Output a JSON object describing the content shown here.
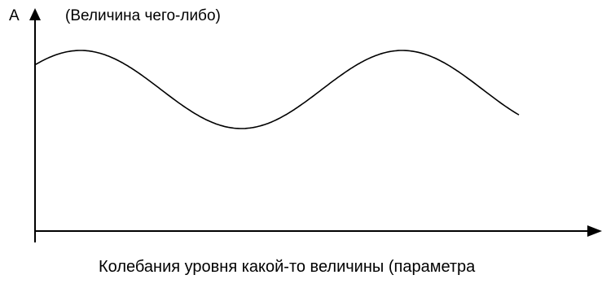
{
  "diagram": {
    "y_axis_name": "A",
    "y_axis_description": "(Величина чего-либо)",
    "caption": "Колебания уровня какой-то величины (параметра"
  }
}
